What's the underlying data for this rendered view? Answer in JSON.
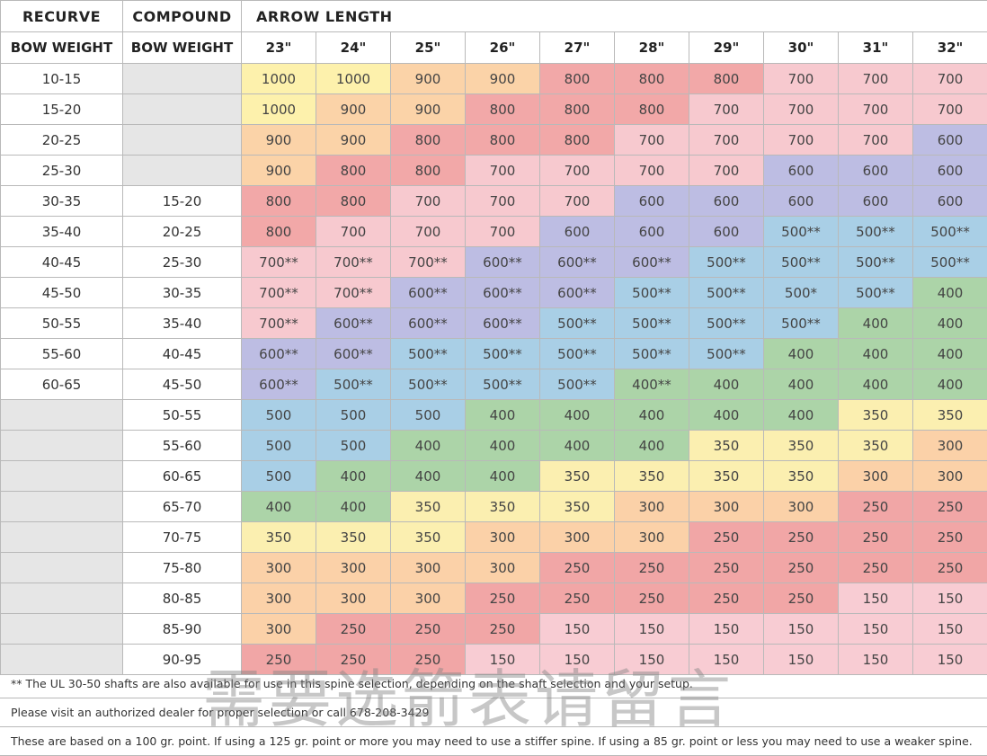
{
  "headers": {
    "recurve": "RECURVE",
    "compound": "COMPOUND",
    "arrow_length": "ARROW LENGTH",
    "bow_weight_recurve": "BOW WEIGHT",
    "bow_weight_compound": "BOW WEIGHT",
    "lengths": [
      "23\"",
      "24\"",
      "25\"",
      "26\"",
      "27\"",
      "28\"",
      "29\"",
      "30\"",
      "31\"",
      "32\""
    ]
  },
  "rows": [
    {
      "recurve": "10-15",
      "compound": "",
      "values": [
        "1000",
        "1000",
        "900",
        "900",
        "800",
        "800",
        "800",
        "700",
        "700",
        "700"
      ]
    },
    {
      "recurve": "15-20",
      "compound": "",
      "values": [
        "1000",
        "900",
        "900",
        "800",
        "800",
        "800",
        "700",
        "700",
        "700",
        "700"
      ]
    },
    {
      "recurve": "20-25",
      "compound": "",
      "values": [
        "900",
        "900",
        "800",
        "800",
        "800",
        "700",
        "700",
        "700",
        "700",
        "600"
      ]
    },
    {
      "recurve": "25-30",
      "compound": "",
      "values": [
        "900",
        "800",
        "800",
        "700",
        "700",
        "700",
        "700",
        "600",
        "600",
        "600"
      ]
    },
    {
      "recurve": "30-35",
      "compound": "15-20",
      "values": [
        "800",
        "800",
        "700",
        "700",
        "700",
        "600",
        "600",
        "600",
        "600",
        "600"
      ]
    },
    {
      "recurve": "35-40",
      "compound": "20-25",
      "values": [
        "800",
        "700",
        "700",
        "700",
        "600",
        "600",
        "600",
        "500**",
        "500**",
        "500**"
      ]
    },
    {
      "recurve": "40-45",
      "compound": "25-30",
      "values": [
        "700**",
        "700**",
        "700**",
        "600**",
        "600**",
        "600**",
        "500**",
        "500**",
        "500**",
        "500**"
      ]
    },
    {
      "recurve": "45-50",
      "compound": "30-35",
      "values": [
        "700**",
        "700**",
        "600**",
        "600**",
        "600**",
        "500**",
        "500**",
        "500*",
        "500**",
        "400"
      ]
    },
    {
      "recurve": "50-55",
      "compound": "35-40",
      "values": [
        "700**",
        "600**",
        "600**",
        "600**",
        "500**",
        "500**",
        "500**",
        "500**",
        "400",
        "400"
      ]
    },
    {
      "recurve": "55-60",
      "compound": "40-45",
      "values": [
        "600**",
        "600**",
        "500**",
        "500**",
        "500**",
        "500**",
        "500**",
        "400",
        "400",
        "400"
      ]
    },
    {
      "recurve": "60-65",
      "compound": "45-50",
      "values": [
        "600**",
        "500**",
        "500**",
        "500**",
        "500**",
        "400**",
        "400",
        "400",
        "400",
        "400"
      ]
    },
    {
      "recurve": "",
      "compound": "50-55",
      "values": [
        "500",
        "500",
        "500",
        "400",
        "400",
        "400",
        "400",
        "400",
        "350",
        "350"
      ]
    },
    {
      "recurve": "",
      "compound": "55-60",
      "values": [
        "500",
        "500",
        "400",
        "400",
        "400",
        "400",
        "350",
        "350",
        "350",
        "300"
      ]
    },
    {
      "recurve": "",
      "compound": "60-65",
      "values": [
        "500",
        "400",
        "400",
        "400",
        "350",
        "350",
        "350",
        "350",
        "300",
        "300"
      ]
    },
    {
      "recurve": "",
      "compound": "65-70",
      "values": [
        "400",
        "400",
        "350",
        "350",
        "350",
        "300",
        "300",
        "300",
        "250",
        "250"
      ]
    },
    {
      "recurve": "",
      "compound": "70-75",
      "values": [
        "350",
        "350",
        "350",
        "300",
        "300",
        "300",
        "250",
        "250",
        "250",
        "250"
      ]
    },
    {
      "recurve": "",
      "compound": "75-80",
      "values": [
        "300",
        "300",
        "300",
        "300",
        "250",
        "250",
        "250",
        "250",
        "250",
        "250"
      ]
    },
    {
      "recurve": "",
      "compound": "80-85",
      "values": [
        "300",
        "300",
        "300",
        "250",
        "250",
        "250",
        "250",
        "250",
        "150",
        "150"
      ]
    },
    {
      "recurve": "",
      "compound": "85-90",
      "values": [
        "300",
        "250",
        "250",
        "250",
        "150",
        "150",
        "150",
        "150",
        "150",
        "150"
      ]
    },
    {
      "recurve": "",
      "compound": "90-95",
      "values": [
        "250",
        "250",
        "250",
        "150",
        "150",
        "150",
        "150",
        "150",
        "150",
        "150"
      ]
    }
  ],
  "notes": [
    "** The UL 30-50 shafts are also available for use in this spine selection, depending on the shaft selection and your setup.",
    "Please visit an authorized dealer for proper selection or call 678-208-3429",
    "These are based on a 100 gr. point. If using a 125 gr. point or more you may need to use a stiffer spine. If using a 85 gr. point or less you may need to use a weaker spine."
  ],
  "watermark": "需要选箭表请留言",
  "colors": {
    "1000": "#fdf1ac",
    "900": "#fbd3a8",
    "800": "#f2a8a8",
    "700": "#f7c9cf",
    "600": "#bdbde3",
    "500": "#a9cfe6",
    "400": "#acd4a8",
    "350": "#fbefb0",
    "300": "#fbd1a8",
    "250": "#f1a6a6",
    "150": "#f8ccd3",
    "empty": "#e6e6e6"
  }
}
